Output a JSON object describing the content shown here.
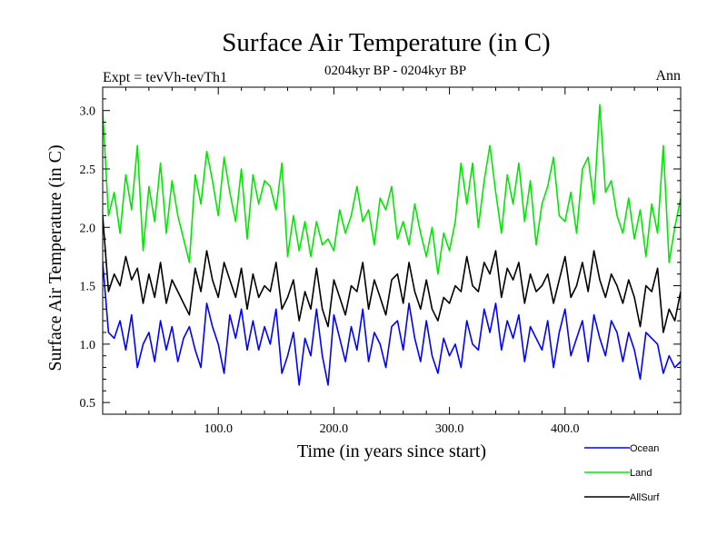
{
  "chart_data": {
    "type": "line",
    "title": "Surface Air Temperature (in C)",
    "subtitle": "0204kyr BP - 0204kyr BP",
    "left_annotation": "Expt = tevVh-tevTh1",
    "right_annotation": "Ann",
    "xlabel": "Time (in years since start)",
    "ylabel": "Surface Air Temperature (in C)",
    "xlim": [
      0,
      500
    ],
    "ylim": [
      0.4,
      3.2
    ],
    "x_ticks": [
      {
        "value": 100,
        "label": "100.0"
      },
      {
        "value": 200,
        "label": "200.0"
      },
      {
        "value": 300,
        "label": "300.0"
      },
      {
        "value": 400,
        "label": "400.0"
      }
    ],
    "y_ticks": [
      {
        "value": 0.5,
        "label": "0.5"
      },
      {
        "value": 1.0,
        "label": "1.0"
      },
      {
        "value": 1.5,
        "label": "1.5"
      },
      {
        "value": 2.0,
        "label": "2.0"
      },
      {
        "value": 2.5,
        "label": "2.5"
      },
      {
        "value": 3.0,
        "label": "3.0"
      }
    ],
    "legend_position": "bottom-right, outside plot",
    "series": [
      {
        "name": "Ocean",
        "color": "#0000ff",
        "x": [
          0,
          5,
          10,
          15,
          20,
          25,
          30,
          35,
          40,
          45,
          50,
          55,
          60,
          65,
          70,
          75,
          80,
          85,
          90,
          95,
          100,
          105,
          110,
          115,
          120,
          125,
          130,
          135,
          140,
          145,
          150,
          155,
          160,
          165,
          170,
          175,
          180,
          185,
          190,
          195,
          200,
          205,
          210,
          215,
          220,
          225,
          230,
          235,
          240,
          245,
          250,
          255,
          260,
          265,
          270,
          275,
          280,
          285,
          290,
          295,
          300,
          305,
          310,
          315,
          320,
          325,
          330,
          335,
          340,
          345,
          350,
          355,
          360,
          365,
          370,
          375,
          380,
          385,
          390,
          395,
          400,
          405,
          410,
          415,
          420,
          425,
          430,
          435,
          440,
          445,
          450,
          455,
          460,
          465,
          470,
          475,
          480,
          485,
          490,
          495,
          500
        ],
        "values": [
          1.7,
          1.1,
          1.05,
          1.2,
          0.95,
          1.25,
          0.8,
          1.0,
          1.1,
          0.85,
          1.2,
          0.95,
          1.15,
          0.85,
          1.05,
          1.15,
          0.95,
          0.8,
          1.35,
          1.15,
          1.0,
          0.75,
          1.25,
          1.05,
          1.3,
          0.95,
          1.2,
          0.95,
          1.15,
          1.0,
          1.3,
          0.75,
          0.9,
          1.1,
          0.65,
          1.05,
          0.9,
          1.3,
          0.9,
          0.65,
          1.25,
          1.05,
          0.85,
          1.15,
          0.95,
          1.3,
          0.85,
          1.1,
          1.0,
          0.8,
          1.15,
          1.2,
          0.95,
          1.35,
          1.05,
          0.85,
          1.2,
          0.9,
          0.75,
          1.05,
          0.9,
          1.0,
          0.8,
          1.2,
          1.0,
          0.95,
          1.3,
          1.1,
          1.35,
          0.95,
          1.2,
          1.05,
          1.25,
          0.85,
          1.15,
          1.05,
          0.95,
          1.2,
          0.8,
          1.1,
          1.3,
          0.9,
          1.05,
          1.2,
          0.85,
          1.25,
          1.05,
          0.9,
          1.2,
          1.1,
          0.85,
          1.1,
          0.95,
          0.7,
          1.1,
          1.05,
          1.0,
          0.75,
          0.9,
          0.8,
          0.85
        ]
      },
      {
        "name": "Land",
        "color": "#00e800",
        "x": [
          0,
          5,
          10,
          15,
          20,
          25,
          30,
          35,
          40,
          45,
          50,
          55,
          60,
          65,
          70,
          75,
          80,
          85,
          90,
          95,
          100,
          105,
          110,
          115,
          120,
          125,
          130,
          135,
          140,
          145,
          150,
          155,
          160,
          165,
          170,
          175,
          180,
          185,
          190,
          195,
          200,
          205,
          210,
          215,
          220,
          225,
          230,
          235,
          240,
          245,
          250,
          255,
          260,
          265,
          270,
          275,
          280,
          285,
          290,
          295,
          300,
          305,
          310,
          315,
          320,
          325,
          330,
          335,
          340,
          345,
          350,
          355,
          360,
          365,
          370,
          375,
          380,
          385,
          390,
          395,
          400,
          405,
          410,
          415,
          420,
          425,
          430,
          435,
          440,
          445,
          450,
          455,
          460,
          465,
          470,
          475,
          480,
          485,
          490,
          495,
          500
        ],
        "values": [
          3.0,
          2.1,
          2.3,
          1.95,
          2.45,
          2.15,
          2.7,
          1.8,
          2.35,
          2.05,
          2.55,
          1.95,
          2.4,
          2.1,
          1.9,
          1.7,
          2.45,
          2.2,
          2.65,
          2.4,
          2.1,
          2.6,
          2.3,
          2.05,
          2.5,
          1.9,
          2.45,
          2.2,
          2.4,
          2.35,
          2.15,
          2.55,
          1.75,
          2.1,
          1.8,
          2.05,
          1.75,
          2.05,
          1.85,
          1.9,
          1.8,
          2.15,
          1.95,
          2.1,
          2.35,
          2.05,
          2.15,
          1.85,
          2.25,
          2.15,
          2.35,
          1.9,
          2.05,
          1.85,
          2.2,
          1.95,
          1.75,
          2.0,
          1.6,
          1.95,
          1.8,
          2.05,
          2.55,
          2.2,
          2.55,
          2.0,
          2.4,
          2.7,
          2.3,
          1.95,
          2.45,
          2.2,
          2.55,
          2.05,
          2.4,
          1.85,
          2.2,
          2.35,
          2.6,
          2.1,
          2.05,
          2.3,
          1.95,
          2.5,
          2.6,
          2.2,
          3.05,
          2.3,
          2.4,
          2.1,
          1.95,
          2.25,
          1.9,
          2.15,
          1.75,
          2.2,
          1.95,
          2.7,
          1.7,
          2.0,
          2.25
        ]
      },
      {
        "name": "AllSurf",
        "color": "#000000",
        "x": [
          0,
          5,
          10,
          15,
          20,
          25,
          30,
          35,
          40,
          45,
          50,
          55,
          60,
          65,
          70,
          75,
          80,
          85,
          90,
          95,
          100,
          105,
          110,
          115,
          120,
          125,
          130,
          135,
          140,
          145,
          150,
          155,
          160,
          165,
          170,
          175,
          180,
          185,
          190,
          195,
          200,
          205,
          210,
          215,
          220,
          225,
          230,
          235,
          240,
          245,
          250,
          255,
          260,
          265,
          270,
          275,
          280,
          285,
          290,
          295,
          300,
          305,
          310,
          315,
          320,
          325,
          330,
          335,
          340,
          345,
          350,
          355,
          360,
          365,
          370,
          375,
          380,
          385,
          390,
          395,
          400,
          405,
          410,
          415,
          420,
          425,
          430,
          435,
          440,
          445,
          450,
          455,
          460,
          465,
          470,
          475,
          480,
          485,
          490,
          495,
          500
        ],
        "values": [
          2.1,
          1.45,
          1.6,
          1.5,
          1.75,
          1.55,
          1.65,
          1.35,
          1.6,
          1.4,
          1.7,
          1.35,
          1.55,
          1.45,
          1.35,
          1.25,
          1.65,
          1.45,
          1.8,
          1.55,
          1.4,
          1.7,
          1.55,
          1.4,
          1.65,
          1.3,
          1.6,
          1.4,
          1.5,
          1.45,
          1.7,
          1.3,
          1.4,
          1.55,
          1.2,
          1.45,
          1.3,
          1.65,
          1.3,
          1.15,
          1.55,
          1.4,
          1.25,
          1.5,
          1.45,
          1.7,
          1.3,
          1.55,
          1.4,
          1.25,
          1.55,
          1.6,
          1.35,
          1.7,
          1.45,
          1.3,
          1.55,
          1.3,
          1.2,
          1.4,
          1.35,
          1.5,
          1.45,
          1.75,
          1.5,
          1.45,
          1.7,
          1.6,
          1.8,
          1.4,
          1.65,
          1.55,
          1.7,
          1.35,
          1.6,
          1.45,
          1.5,
          1.6,
          1.35,
          1.55,
          1.75,
          1.4,
          1.5,
          1.7,
          1.45,
          1.8,
          1.55,
          1.4,
          1.6,
          1.5,
          1.35,
          1.55,
          1.4,
          1.15,
          1.5,
          1.45,
          1.65,
          1.1,
          1.3,
          1.2,
          1.45
        ]
      }
    ]
  }
}
